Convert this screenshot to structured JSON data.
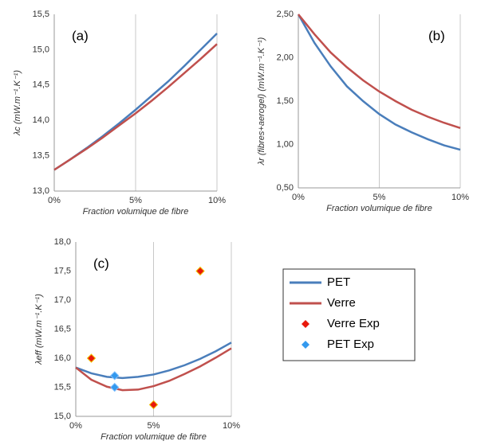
{
  "chart_data": [
    {
      "type": "line",
      "annotation": "(a)",
      "x_label": "Fraction volumique de fibre",
      "y_label": "λc (mW.m⁻¹.K⁻¹)",
      "xlim": [
        0,
        10
      ],
      "xticks": [
        {
          "value": 0,
          "label": "0%"
        },
        {
          "value": 5,
          "label": "5%"
        },
        {
          "value": 10,
          "label": "10%"
        }
      ],
      "ylim": [
        13.0,
        15.5
      ],
      "yticks": [
        {
          "value": 13.0,
          "label": "13,0"
        },
        {
          "value": 13.5,
          "label": "13,5"
        },
        {
          "value": 14.0,
          "label": "14,0"
        },
        {
          "value": 14.5,
          "label": "14,5"
        },
        {
          "value": 15.0,
          "label": "15,0"
        },
        {
          "value": 15.5,
          "label": "15,5"
        }
      ],
      "x_grid": true,
      "series": [
        {
          "color": "#4a7ebb",
          "x": [
            0,
            1,
            2,
            3,
            4,
            5,
            6,
            7,
            8,
            9,
            10
          ],
          "values": [
            13.3,
            13.45,
            13.61,
            13.78,
            13.96,
            14.15,
            14.35,
            14.55,
            14.77,
            15.0,
            15.23
          ]
        },
        {
          "color": "#c0504d",
          "x": [
            0,
            1,
            2,
            3,
            4,
            5,
            6,
            7,
            8,
            9,
            10
          ],
          "values": [
            13.3,
            13.45,
            13.6,
            13.76,
            13.93,
            14.1,
            14.28,
            14.47,
            14.67,
            14.87,
            15.08
          ]
        }
      ]
    },
    {
      "type": "line",
      "annotation": "(b)",
      "x_label": "Fraction volumique de fibre",
      "y_label": "λr (fibres+aerogel) (mW.m⁻¹.K⁻¹)",
      "xlim": [
        0,
        10
      ],
      "xticks": [
        {
          "value": 0,
          "label": "0%"
        },
        {
          "value": 5,
          "label": "5%"
        },
        {
          "value": 10,
          "label": "10%"
        }
      ],
      "ylim": [
        0.5,
        2.5
      ],
      "yticks": [
        {
          "value": 0.5,
          "label": "0,50"
        },
        {
          "value": 1.0,
          "label": "1,00"
        },
        {
          "value": 1.5,
          "label": "1,50"
        },
        {
          "value": 2.0,
          "label": "2,00"
        },
        {
          "value": 2.5,
          "label": "2,50"
        }
      ],
      "x_grid": true,
      "series": [
        {
          "color": "#4a7ebb",
          "x": [
            0,
            1,
            2,
            3,
            4,
            5,
            6,
            7,
            8,
            9,
            10
          ],
          "values": [
            2.5,
            2.17,
            1.9,
            1.67,
            1.5,
            1.35,
            1.23,
            1.14,
            1.06,
            0.99,
            0.94
          ]
        },
        {
          "color": "#c0504d",
          "x": [
            0,
            1,
            2,
            3,
            4,
            5,
            6,
            7,
            8,
            9,
            10
          ],
          "values": [
            2.5,
            2.27,
            2.06,
            1.89,
            1.74,
            1.61,
            1.5,
            1.4,
            1.32,
            1.25,
            1.19
          ]
        }
      ]
    },
    {
      "type": "line",
      "annotation": "(c)",
      "x_label": "Fraction volumique de fibre",
      "y_label": "λeff (mW.m⁻¹.K⁻¹)",
      "xlim": [
        0,
        10
      ],
      "xticks": [
        {
          "value": 0,
          "label": "0%"
        },
        {
          "value": 5,
          "label": "5%"
        },
        {
          "value": 10,
          "label": "10%"
        }
      ],
      "ylim": [
        15.0,
        18.0
      ],
      "yticks": [
        {
          "value": 15.0,
          "label": "15,0"
        },
        {
          "value": 15.5,
          "label": "15,5"
        },
        {
          "value": 16.0,
          "label": "16,0"
        },
        {
          "value": 16.5,
          "label": "16,5"
        },
        {
          "value": 17.0,
          "label": "17,0"
        },
        {
          "value": 17.5,
          "label": "17,5"
        },
        {
          "value": 18.0,
          "label": "18,0"
        }
      ],
      "x_grid": true,
      "legend": "right",
      "series": [
        {
          "name": "PET",
          "type": "line",
          "color": "#4a7ebb",
          "x": [
            0,
            1,
            2,
            3,
            4,
            5,
            6,
            7,
            8,
            9,
            10
          ],
          "values": [
            15.84,
            15.74,
            15.68,
            15.66,
            15.68,
            15.72,
            15.79,
            15.88,
            15.99,
            16.12,
            16.27
          ]
        },
        {
          "name": "Verre",
          "type": "line",
          "color": "#c0504d",
          "x": [
            0,
            1,
            2,
            3,
            4,
            5,
            6,
            7,
            8,
            9,
            10
          ],
          "values": [
            15.84,
            15.63,
            15.51,
            15.45,
            15.46,
            15.52,
            15.61,
            15.73,
            15.86,
            16.01,
            16.17
          ]
        },
        {
          "name": "Verre Exp",
          "type": "scatter",
          "color": "#e8180c",
          "x": [
            1,
            5,
            8
          ],
          "values": [
            16.0,
            15.2,
            17.5
          ]
        },
        {
          "name": "PET Exp",
          "type": "scatter",
          "color": "#3399ee",
          "x": [
            2.5,
            2.5
          ],
          "values": [
            15.7,
            15.5
          ]
        }
      ]
    }
  ]
}
